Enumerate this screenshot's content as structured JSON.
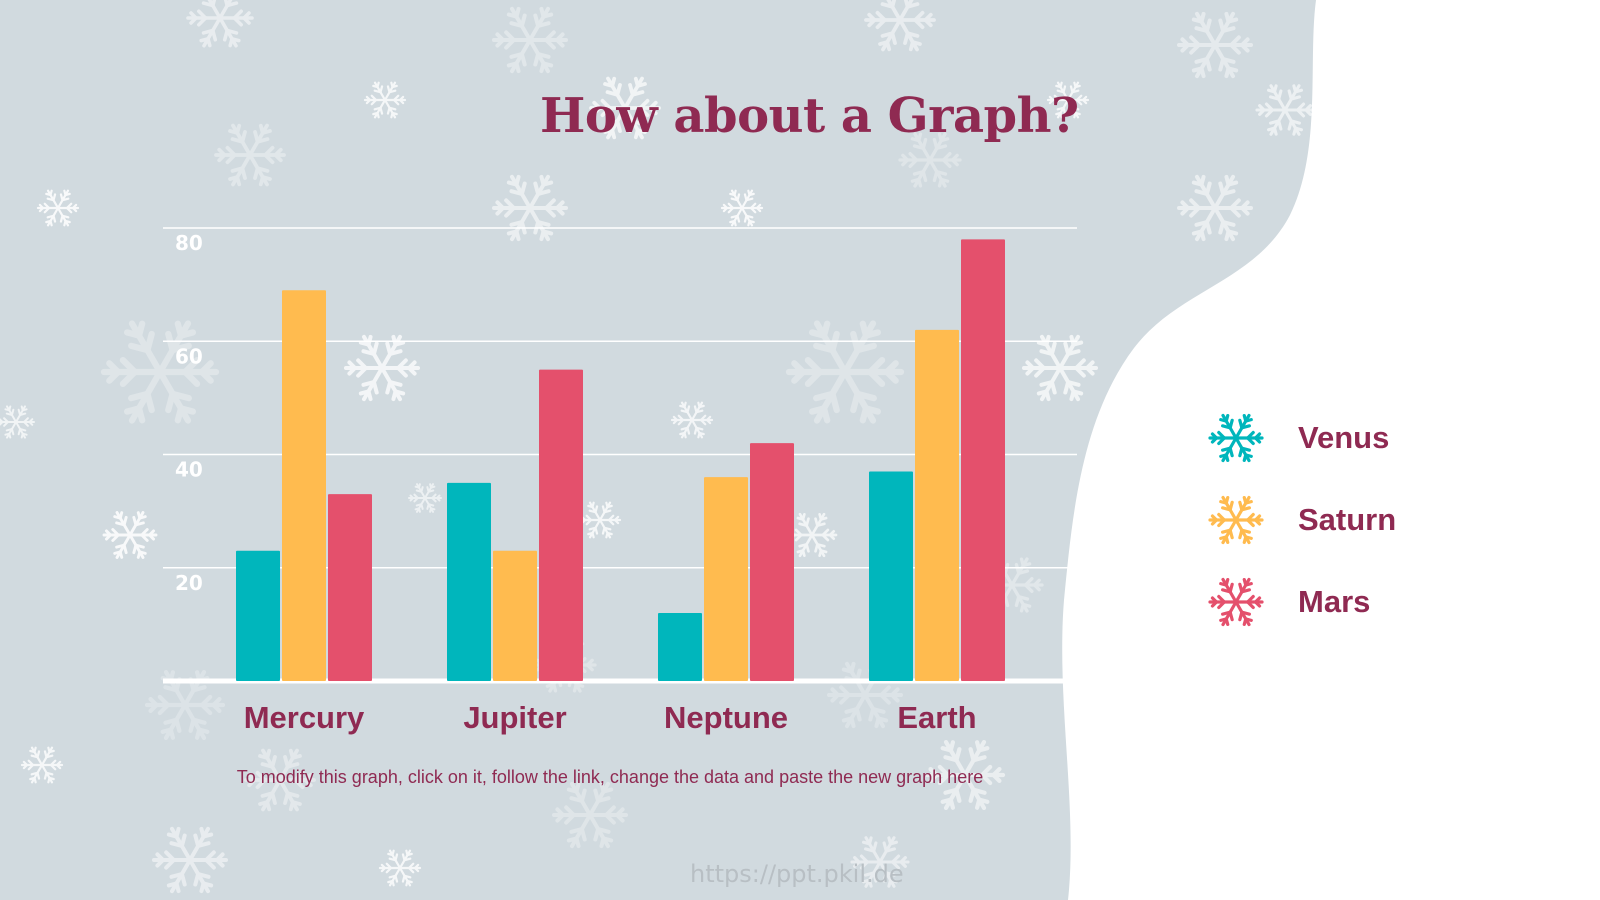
{
  "slide": {
    "title": "How about a Graph?",
    "note": "To modify this graph, click on it, follow the link, change the data and paste the new graph here",
    "watermark": "https://ppt.pkil.de"
  },
  "colors": {
    "background_panel": "#d1dadf",
    "page_background": "#ffffff",
    "title": "#8f2a52",
    "gridline": "#ffffff",
    "snowflake_decor": "#ffffff"
  },
  "legend": [
    {
      "label": "Venus",
      "color": "#00b6bc",
      "icon": "snowflake-icon"
    },
    {
      "label": "Saturn",
      "color": "#ffbb4f",
      "icon": "snowflake-icon"
    },
    {
      "label": "Mars",
      "color": "#e4506c",
      "icon": "snowflake-icon"
    }
  ],
  "chart_data": {
    "type": "bar",
    "title": "",
    "xlabel": "",
    "ylabel": "",
    "categories": [
      "Mercury",
      "Jupiter",
      "Neptune",
      "Earth"
    ],
    "series": [
      {
        "name": "Venus",
        "color": "#00b6bc",
        "values": [
          23,
          35,
          12,
          37
        ]
      },
      {
        "name": "Saturn",
        "color": "#ffbb4f",
        "values": [
          69,
          23,
          36,
          62
        ]
      },
      {
        "name": "Mars",
        "color": "#e4506c",
        "values": [
          33,
          55,
          42,
          78
        ]
      }
    ],
    "ylim": [
      0,
      80
    ],
    "yticks": [
      20,
      40,
      60,
      80
    ],
    "grid": true,
    "legend_position": "right"
  }
}
